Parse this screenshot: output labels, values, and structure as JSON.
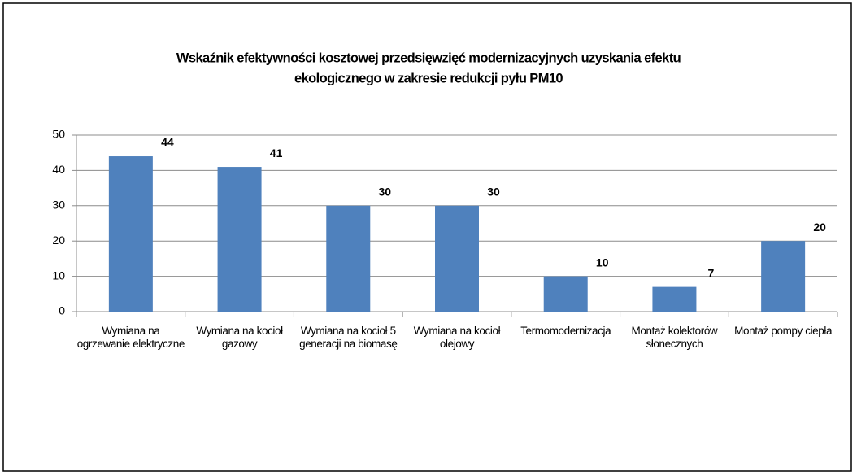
{
  "chart_data": {
    "type": "bar",
    "title": [
      "Wskaźnik efektywności kosztowej przedsięwzięć modernizacyjnych uzyskania efektu",
      "ekologicznego w zakresie redukcji pyłu PM10"
    ],
    "categories": [
      "Wymiana na ogrzewanie elektryczne",
      "Wymiana na kocioł gazowy",
      "Wymiana na kocioł 5 generacji na biomasę",
      "Wymiana na kocioł olejowy",
      "Termomodernizacja",
      "Montaż kolektorów słonecznych",
      "Montaż pompy ciepła"
    ],
    "values": [
      44,
      41,
      30,
      30,
      10,
      7,
      20
    ],
    "color": "#4f81bd",
    "ylim": [
      0,
      50
    ],
    "yticks": [
      0,
      10,
      20,
      30,
      40,
      50
    ],
    "grid": true
  }
}
